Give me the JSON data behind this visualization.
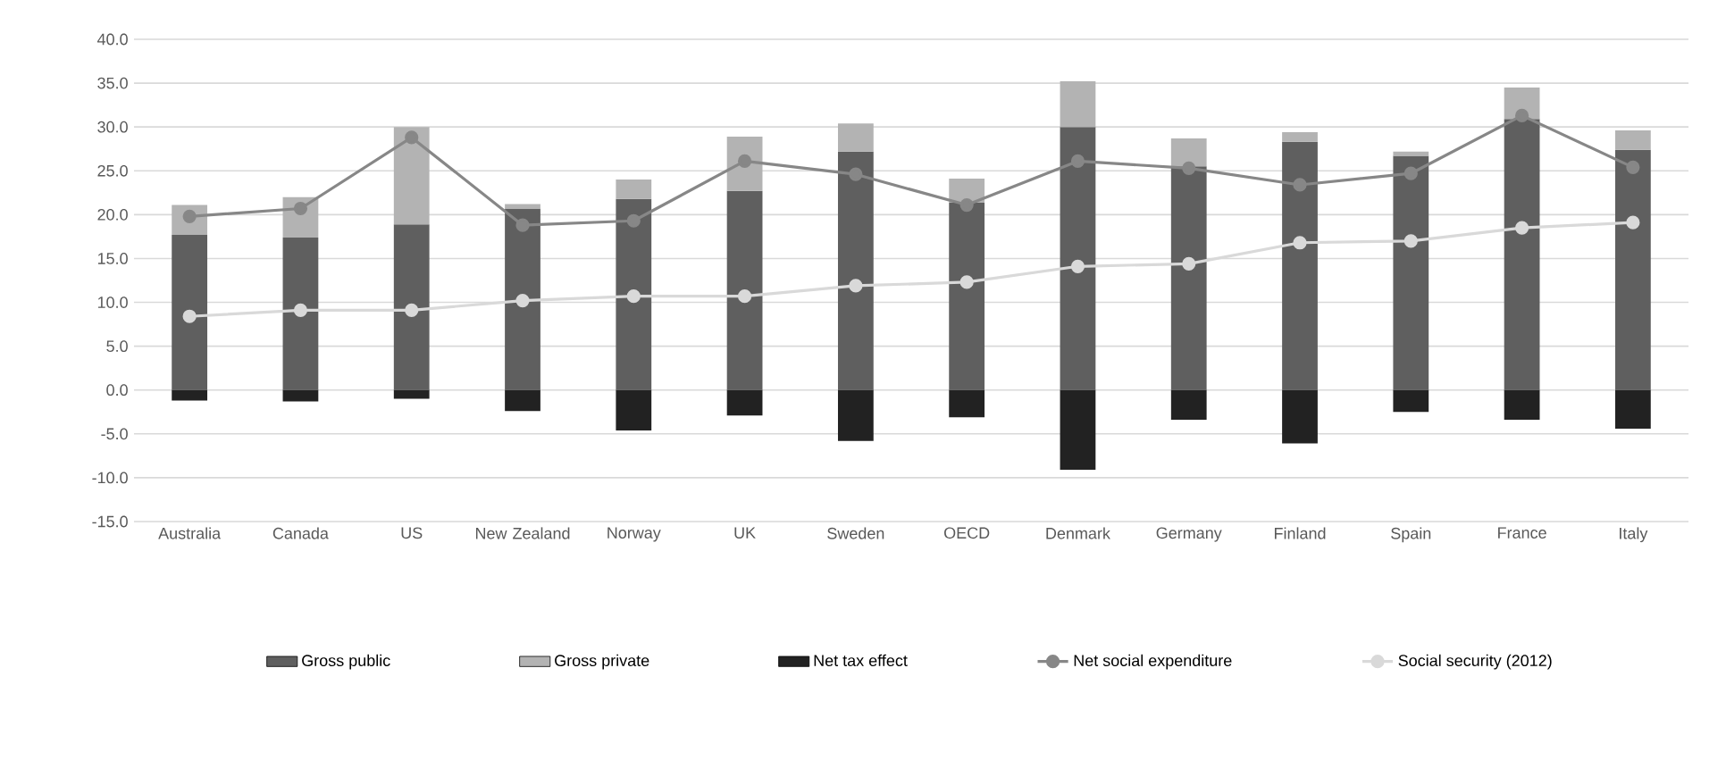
{
  "chart_data": {
    "type": "bar",
    "stacked": true,
    "categories": [
      "Australia",
      "Canada",
      "US",
      "New Zealand",
      "Norway",
      "UK",
      "Sweden",
      "OECD",
      "Denmark",
      "Germany",
      "Finland",
      "Spain",
      "France",
      "Italy"
    ],
    "series": [
      {
        "name": "Gross public",
        "color": "#5f5f5f",
        "values": [
          17.7,
          17.4,
          18.9,
          20.7,
          21.8,
          22.7,
          27.2,
          21.4,
          30.0,
          25.5,
          28.3,
          26.7,
          30.9,
          27.4
        ]
      },
      {
        "name": "Gross private",
        "color": "#b3b3b3",
        "values": [
          3.4,
          4.6,
          11.1,
          0.5,
          2.2,
          6.2,
          3.2,
          2.7,
          5.2,
          3.2,
          1.1,
          0.5,
          3.6,
          2.2
        ]
      },
      {
        "name": "Net tax effect",
        "color": "#222222",
        "values": [
          -1.2,
          -1.3,
          -1.0,
          -2.4,
          -4.6,
          -2.9,
          -5.8,
          -3.1,
          -9.1,
          -3.4,
          -6.1,
          -2.5,
          -3.4,
          -4.4
        ]
      },
      {
        "name": "Net social expenditure",
        "type": "line",
        "color": "#878787",
        "values": [
          19.8,
          20.7,
          28.8,
          18.8,
          19.3,
          26.1,
          24.6,
          21.1,
          26.1,
          25.3,
          23.4,
          24.7,
          31.3,
          25.4
        ]
      },
      {
        "name": "Social security (2012)",
        "type": "line",
        "color": "#d9d9d9",
        "values": [
          8.4,
          9.1,
          9.1,
          10.2,
          10.7,
          10.7,
          11.9,
          12.3,
          14.1,
          14.4,
          16.8,
          17.0,
          18.5,
          19.1
        ]
      }
    ],
    "ylim": [
      -15,
      40
    ],
    "yticks": [
      {
        "value": -15,
        "label": "-15.0"
      },
      {
        "value": -10,
        "label": "-10.0"
      },
      {
        "value": -5,
        "label": "-5.0"
      },
      {
        "value": 0,
        "label": "0.0"
      },
      {
        "value": 5,
        "label": "5.0"
      },
      {
        "value": 10,
        "label": "10.0"
      },
      {
        "value": 15,
        "label": "15.0"
      },
      {
        "value": 20,
        "label": "20.0"
      },
      {
        "value": 25,
        "label": "25.0"
      },
      {
        "value": 30,
        "label": "30.0"
      },
      {
        "value": 35,
        "label": "35.0"
      },
      {
        "value": 40,
        "label": "40.0"
      }
    ],
    "grid": "y",
    "legend": "bottom",
    "marker": "circle"
  }
}
